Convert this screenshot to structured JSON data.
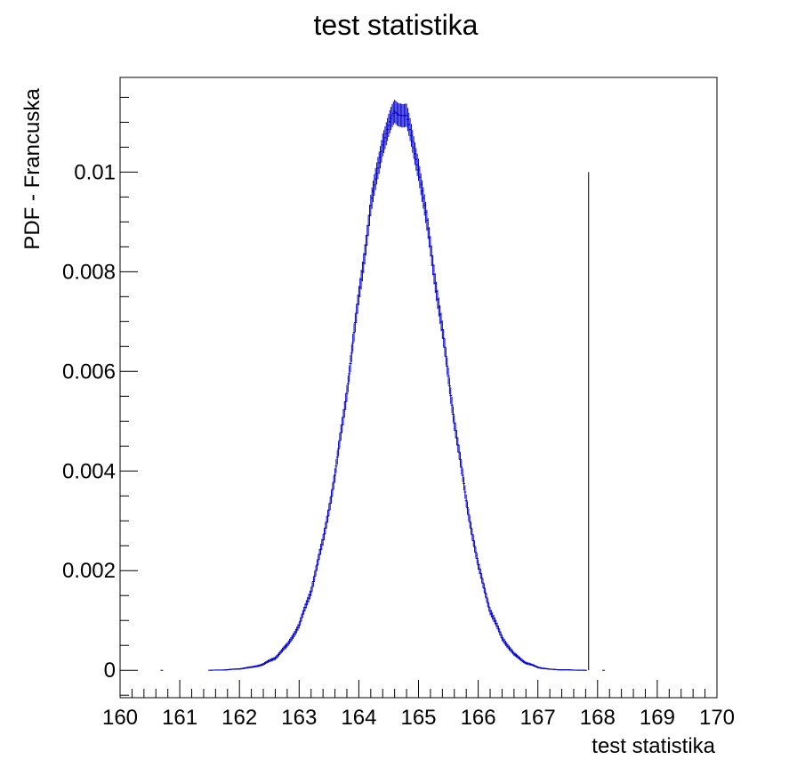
{
  "chart_data": {
    "type": "histogram",
    "title": "test statistika",
    "xlabel": "test statistika",
    "ylabel": "PDF - Francuska",
    "xlim": [
      160,
      170
    ],
    "ylim": [
      -0.00055,
      0.0119
    ],
    "x_ticks": [
      160,
      161,
      162,
      163,
      164,
      165,
      166,
      167,
      168,
      169,
      170
    ],
    "x_tick_labels": [
      "160",
      "161",
      "162",
      "163",
      "164",
      "165",
      "166",
      "167",
      "168",
      "169",
      "170"
    ],
    "y_ticks": [
      0,
      0.002,
      0.004,
      0.006,
      0.008,
      0.01
    ],
    "y_tick_labels": [
      "0",
      "0.002",
      "0.004",
      "0.006",
      "0.008",
      "0.01"
    ],
    "grid": false,
    "series": [
      {
        "color": "#0000cc",
        "style": "error-bars",
        "peak_x": 164.7,
        "peak_y": 0.0112,
        "x": [
          161.5,
          161.8,
          162.0,
          162.2,
          162.4,
          162.6,
          162.8,
          163.0,
          163.2,
          163.4,
          163.6,
          163.8,
          164.0,
          164.2,
          164.4,
          164.6,
          164.7,
          164.8,
          165.0,
          165.2,
          165.4,
          165.6,
          165.8,
          166.0,
          166.2,
          166.4,
          166.6,
          166.8,
          167.0,
          167.2,
          167.4,
          167.8
        ],
        "y": [
          0.0,
          1e-05,
          3e-05,
          6e-05,
          0.00012,
          0.00025,
          0.0005,
          0.0009,
          0.0016,
          0.0026,
          0.0039,
          0.0056,
          0.0075,
          0.0093,
          0.0106,
          0.0112,
          0.0112,
          0.0111,
          0.0101,
          0.0085,
          0.0068,
          0.005,
          0.0034,
          0.0021,
          0.0012,
          0.00065,
          0.00032,
          0.00015,
          6e-05,
          2e-05,
          1e-05,
          0.0
        ],
        "isolated_points_x": [
          160.7,
          168.1
        ]
      }
    ],
    "annotations": [
      {
        "type": "vertical-line",
        "x": 167.85,
        "y_from": 0,
        "y_to": 0.01,
        "color": "#000000"
      }
    ]
  }
}
